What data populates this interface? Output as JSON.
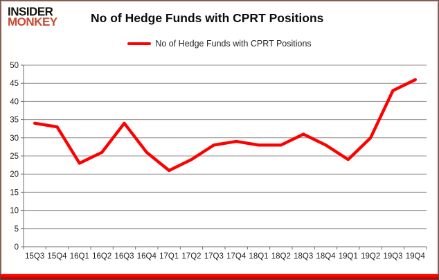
{
  "logo": {
    "line1": "INSIDER",
    "line2": "MONKEY"
  },
  "header": {
    "title": "No of Hedge Funds with CPRT Positions"
  },
  "legend": {
    "label": "No of Hedge Funds with CPRT Positions"
  },
  "chart_data": {
    "type": "line",
    "title": "No of Hedge Funds with CPRT Positions",
    "categories": [
      "15Q3",
      "15Q4",
      "16Q1",
      "16Q2",
      "16Q3",
      "16Q4",
      "17Q1",
      "17Q2",
      "17Q3",
      "17Q4",
      "18Q1",
      "18Q2",
      "18Q3",
      "18Q4",
      "19Q1",
      "19Q2",
      "19Q3",
      "19Q4"
    ],
    "values": [
      34,
      33,
      23,
      26,
      34,
      26,
      21,
      24,
      28,
      29,
      28,
      28,
      31,
      28,
      24,
      30,
      43,
      46
    ],
    "xlabel": "",
    "ylabel": "",
    "ylim": [
      0,
      50
    ],
    "ytick_step": 5,
    "grid": true,
    "legend_position": "top",
    "series_name": "No of Hedge Funds with CPRT Positions",
    "line_color": "#fe0000",
    "grid_color": "#8c8c8c",
    "axis_color": "#6e6e6e",
    "axis_text_color": "#1f1f1f"
  },
  "colors": {
    "logo_insider": "#161412",
    "logo_monkey": "#c7492f",
    "frame_border": "#4d4d4d",
    "frame_inner": "#f5bfb6",
    "bottom_bar": "#ff0000",
    "background": "#ffffff"
  }
}
